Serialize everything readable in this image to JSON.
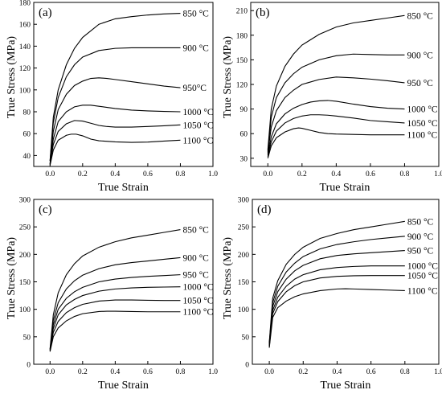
{
  "chart_data": [
    {
      "type": "line",
      "panel_label": "(a)",
      "xlabel": "True Strain",
      "ylabel": "True Stress (MPa)",
      "xlim": [
        -0.1,
        1.0
      ],
      "ylim": [
        30,
        180
      ],
      "xticks": [
        "0.0",
        "0.2",
        "0.4",
        "0.6",
        "0.8",
        "1.0"
      ],
      "yticks": [
        "40",
        "60",
        "80",
        "100",
        "120",
        "140",
        "160",
        "180"
      ],
      "grid": false,
      "series": [
        {
          "name": "850 °C",
          "x": [
            0,
            0.02,
            0.05,
            0.1,
            0.15,
            0.2,
            0.3,
            0.4,
            0.5,
            0.6,
            0.7,
            0.8
          ],
          "y": [
            35,
            75,
            100,
            123,
            138,
            148,
            160,
            165,
            167,
            168.5,
            169.5,
            170
          ]
        },
        {
          "name": "900 °C",
          "x": [
            0,
            0.02,
            0.05,
            0.1,
            0.15,
            0.2,
            0.3,
            0.4,
            0.5,
            0.6,
            0.7,
            0.8
          ],
          "y": [
            35,
            70,
            93,
            112,
            123,
            130,
            136,
            138,
            138.5,
            138.5,
            138.5,
            138.5
          ]
        },
        {
          "name": "950°C",
          "x": [
            0,
            0.02,
            0.05,
            0.1,
            0.15,
            0.2,
            0.25,
            0.3,
            0.35,
            0.4,
            0.5,
            0.6,
            0.7,
            0.8
          ],
          "y": [
            33,
            62,
            82,
            96,
            104,
            108,
            110.5,
            111,
            110.5,
            109.5,
            107.5,
            105.5,
            103.5,
            102
          ]
        },
        {
          "name": "1000 °C",
          "x": [
            0,
            0.02,
            0.05,
            0.1,
            0.15,
            0.2,
            0.25,
            0.3,
            0.35,
            0.4,
            0.5,
            0.6,
            0.7,
            0.8
          ],
          "y": [
            32,
            55,
            71,
            80,
            84.5,
            86,
            86,
            85,
            84,
            83,
            81.5,
            80.8,
            80.3,
            80
          ]
        },
        {
          "name": "1050 °C",
          "x": [
            0,
            0.02,
            0.05,
            0.1,
            0.15,
            0.2,
            0.25,
            0.3,
            0.35,
            0.4,
            0.5,
            0.6,
            0.7,
            0.8
          ],
          "y": [
            32,
            50,
            62,
            69,
            72,
            71.5,
            69.5,
            67.5,
            66.5,
            66,
            66,
            66.5,
            67.2,
            68
          ]
        },
        {
          "name": "1100 °C",
          "x": [
            0,
            0.02,
            0.05,
            0.1,
            0.13,
            0.16,
            0.2,
            0.25,
            0.3,
            0.4,
            0.5,
            0.6,
            0.7,
            0.8
          ],
          "y": [
            31,
            45,
            54,
            58.5,
            59.5,
            59.5,
            58,
            55,
            53.5,
            52.5,
            52,
            52.3,
            53.2,
            54
          ]
        }
      ]
    },
    {
      "type": "line",
      "panel_label": "(b)",
      "xlabel": "True Strain",
      "ylabel": "True Stress (MPa)",
      "xlim": [
        -0.1,
        1.0
      ],
      "ylim": [
        20,
        220
      ],
      "xticks": [
        "0.0",
        "0.2",
        "0.4",
        "0.6",
        "0.8",
        "1.0"
      ],
      "yticks": [
        "30",
        "60",
        "90",
        "120",
        "150",
        "180",
        "210"
      ],
      "grid": false,
      "series": [
        {
          "name": "850 °C",
          "x": [
            0,
            0.02,
            0.05,
            0.1,
            0.15,
            0.2,
            0.3,
            0.4,
            0.5,
            0.6,
            0.7,
            0.8
          ],
          "y": [
            40,
            90,
            118,
            142,
            157,
            168,
            181,
            190,
            195,
            198,
            201,
            204
          ]
        },
        {
          "name": "900 °C",
          "x": [
            0,
            0.02,
            0.05,
            0.1,
            0.15,
            0.2,
            0.3,
            0.4,
            0.5,
            0.6,
            0.7,
            0.8
          ],
          "y": [
            38,
            80,
            104,
            122,
            133,
            141,
            150,
            155,
            157,
            156.5,
            156,
            156
          ]
        },
        {
          "name": "950 °C",
          "x": [
            0,
            0.02,
            0.05,
            0.1,
            0.15,
            0.2,
            0.3,
            0.4,
            0.5,
            0.6,
            0.7,
            0.8
          ],
          "y": [
            36,
            68,
            88,
            104,
            113,
            120,
            126,
            129,
            128,
            126.5,
            124.5,
            122
          ]
        },
        {
          "name": "1000 °C",
          "x": [
            0,
            0.02,
            0.05,
            0.1,
            0.15,
            0.2,
            0.25,
            0.3,
            0.35,
            0.4,
            0.5,
            0.6,
            0.7,
            0.8
          ],
          "y": [
            34,
            56,
            72,
            84,
            91,
            95.5,
            98.5,
            100,
            100.5,
            99.5,
            96,
            93,
            91,
            90
          ]
        },
        {
          "name": "1050 °C",
          "x": [
            0,
            0.02,
            0.05,
            0.1,
            0.15,
            0.2,
            0.25,
            0.3,
            0.35,
            0.4,
            0.5,
            0.6,
            0.7,
            0.8
          ],
          "y": [
            32,
            50,
            63,
            73,
            78.5,
            81.5,
            83,
            83,
            82.5,
            81.5,
            79,
            76,
            74.5,
            73
          ]
        },
        {
          "name": "1100 °C",
          "x": [
            0,
            0.02,
            0.05,
            0.1,
            0.15,
            0.18,
            0.2,
            0.25,
            0.3,
            0.35,
            0.4,
            0.5,
            0.6,
            0.7,
            0.8
          ],
          "y": [
            30,
            45,
            55,
            62,
            66,
            67,
            66.5,
            64,
            61.5,
            60,
            59.5,
            59,
            58.5,
            58.5,
            58.5
          ]
        }
      ]
    },
    {
      "type": "line",
      "panel_label": "(c)",
      "xlabel": "True Strain",
      "ylabel": "True Stress (MPa)",
      "xlim": [
        -0.1,
        1.0
      ],
      "ylim": [
        0,
        300
      ],
      "xticks": [
        "0.0",
        "0.2",
        "0.4",
        "0.6",
        "0.8",
        "1.0"
      ],
      "yticks": [
        "0",
        "50",
        "100",
        "150",
        "200",
        "250",
        "300"
      ],
      "grid": false,
      "series": [
        {
          "name": "850 °C",
          "x": [
            0,
            0.02,
            0.05,
            0.1,
            0.15,
            0.2,
            0.3,
            0.4,
            0.5,
            0.6,
            0.7,
            0.8
          ],
          "y": [
            28,
            90,
            130,
            163,
            183,
            197,
            213,
            223,
            230,
            235,
            240,
            245
          ]
        },
        {
          "name": "900 °C",
          "x": [
            0,
            0.02,
            0.05,
            0.1,
            0.15,
            0.2,
            0.3,
            0.4,
            0.5,
            0.6,
            0.7,
            0.8
          ],
          "y": [
            27,
            80,
            112,
            137,
            152,
            162,
            174,
            181,
            185,
            188,
            191,
            194
          ]
        },
        {
          "name": "950 °C",
          "x": [
            0,
            0.02,
            0.05,
            0.1,
            0.15,
            0.2,
            0.3,
            0.4,
            0.5,
            0.6,
            0.7,
            0.8
          ],
          "y": [
            26,
            72,
            100,
            120,
            132,
            140,
            150,
            155,
            158,
            160,
            161.5,
            163
          ]
        },
        {
          "name": "1000 °C",
          "x": [
            0,
            0.02,
            0.05,
            0.1,
            0.15,
            0.2,
            0.3,
            0.4,
            0.5,
            0.6,
            0.7,
            0.8
          ],
          "y": [
            25,
            65,
            90,
            108,
            118,
            125,
            133,
            137,
            139,
            140,
            140.5,
            141
          ]
        },
        {
          "name": "1050 °C",
          "x": [
            0,
            0.02,
            0.05,
            0.1,
            0.15,
            0.2,
            0.3,
            0.4,
            0.5,
            0.6,
            0.7,
            0.8
          ],
          "y": [
            24,
            58,
            78,
            94,
            103,
            109,
            115,
            117,
            117,
            116.5,
            116,
            116
          ]
        },
        {
          "name": "1100 °C",
          "x": [
            0,
            0.02,
            0.05,
            0.1,
            0.15,
            0.2,
            0.3,
            0.35,
            0.4,
            0.5,
            0.6,
            0.7,
            0.8
          ],
          "y": [
            23,
            50,
            66,
            79,
            87,
            92,
            96,
            96.5,
            96.5,
            96,
            95.5,
            95.5,
            95.5
          ]
        }
      ]
    },
    {
      "type": "line",
      "panel_label": "(d)",
      "xlabel": "True Strain",
      "ylabel": "True Stress (MPa)",
      "xlim": [
        -0.1,
        1.0
      ],
      "ylim": [
        0,
        300
      ],
      "xticks": [
        "0.0",
        "0.2",
        "0.4",
        "0.6",
        "0.8",
        "1.0"
      ],
      "yticks": [
        "0",
        "50",
        "100",
        "150",
        "200",
        "250",
        "300"
      ],
      "grid": false,
      "series": [
        {
          "name": "850 °C",
          "x": [
            0,
            0.02,
            0.05,
            0.1,
            0.15,
            0.2,
            0.3,
            0.4,
            0.5,
            0.6,
            0.7,
            0.8
          ],
          "y": [
            40,
            120,
            152,
            182,
            200,
            213,
            229,
            238,
            245,
            250,
            255,
            260
          ]
        },
        {
          "name": "900 °C",
          "x": [
            0,
            0.02,
            0.05,
            0.1,
            0.15,
            0.2,
            0.3,
            0.4,
            0.5,
            0.6,
            0.7,
            0.8
          ],
          "y": [
            38,
            112,
            142,
            168,
            184,
            196,
            210,
            218,
            223,
            227,
            230,
            233
          ]
        },
        {
          "name": "950 °C",
          "x": [
            0,
            0.02,
            0.05,
            0.1,
            0.15,
            0.2,
            0.3,
            0.4,
            0.5,
            0.6,
            0.7,
            0.8
          ],
          "y": [
            36,
            105,
            132,
            155,
            170,
            180,
            192,
            198,
            201,
            203,
            205,
            207
          ]
        },
        {
          "name": "1000 °C",
          "x": [
            0,
            0.02,
            0.05,
            0.1,
            0.15,
            0.2,
            0.3,
            0.4,
            0.5,
            0.6,
            0.7,
            0.8
          ],
          "y": [
            34,
            98,
            122,
            142,
            155,
            163,
            172,
            176,
            178,
            179,
            179,
            179
          ]
        },
        {
          "name": "1050 °C",
          "x": [
            0,
            0.02,
            0.05,
            0.1,
            0.15,
            0.2,
            0.3,
            0.4,
            0.5,
            0.6,
            0.7,
            0.8
          ],
          "y": [
            32,
            92,
            114,
            132,
            143,
            150,
            157,
            160,
            161,
            161.5,
            161.5,
            161.5
          ]
        },
        {
          "name": "1100 °C",
          "x": [
            0,
            0.02,
            0.05,
            0.1,
            0.15,
            0.2,
            0.3,
            0.4,
            0.45,
            0.5,
            0.6,
            0.7,
            0.8
          ],
          "y": [
            30,
            85,
            103,
            115,
            123,
            128,
            134,
            137,
            137.5,
            137,
            136,
            135,
            134
          ]
        }
      ]
    }
  ]
}
